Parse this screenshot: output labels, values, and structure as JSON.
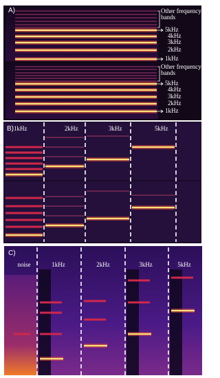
{
  "panels": [
    {
      "label": "A)",
      "other_bands": "Other frequency bands",
      "bands": [
        "5kHz",
        "4kHz",
        "3kHz",
        "2kHz",
        "1kHz"
      ]
    },
    {
      "label": "B)",
      "segments": [
        "1kHz",
        "2kHz",
        "3kHz",
        "5kHz"
      ]
    },
    {
      "label": "C)",
      "segments": [
        "noise",
        "1kHz",
        "2kHz",
        "3kHz",
        "5kHz"
      ]
    }
  ]
}
